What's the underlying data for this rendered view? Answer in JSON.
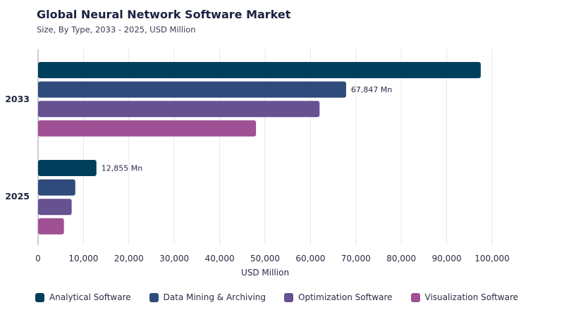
{
  "header": {
    "title": "Global Neural Network Software Market",
    "subtitle": "Size, By Type, 2033 - 2025, USD Million"
  },
  "chart_data": {
    "type": "bar",
    "orientation": "horizontal",
    "categories": [
      "2033",
      "2025"
    ],
    "series": [
      {
        "name": "Analytical Software",
        "color": "#003f5c",
        "values": [
          97500,
          12855
        ]
      },
      {
        "name": "Data Mining & Archiving",
        "color": "#2f4b7c",
        "values": [
          67847,
          8200
        ]
      },
      {
        "name": "Optimization Software",
        "color": "#665191",
        "values": [
          62000,
          7400
        ]
      },
      {
        "name": "Visualization Software",
        "color": "#a05195",
        "values": [
          48000,
          5700
        ]
      }
    ],
    "data_labels": [
      {
        "category": "2033",
        "series": "Data Mining & Archiving",
        "text": "67,847 Mn"
      },
      {
        "category": "2025",
        "series": "Analytical Software",
        "text": "12,855 Mn"
      }
    ],
    "xlabel": "USD Million",
    "xlim": [
      0,
      100000
    ],
    "xticks": [
      "0",
      "10,000",
      "20,000",
      "30,000",
      "40,000",
      "50,000",
      "60,000",
      "70,000",
      "80,000",
      "90,000",
      "100,000"
    ],
    "grid": true,
    "legend": "bottom"
  }
}
